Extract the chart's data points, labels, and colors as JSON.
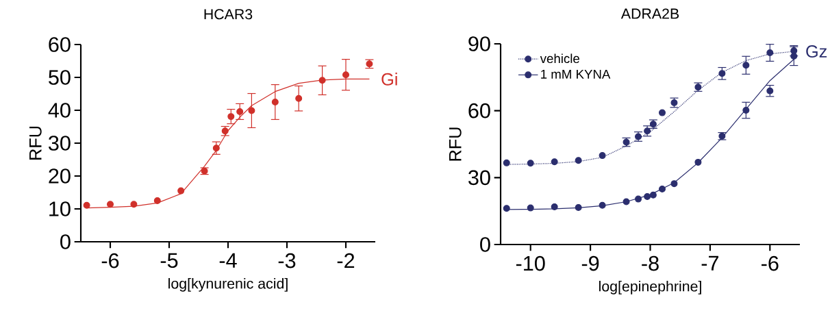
{
  "chart_data": [
    {
      "type": "scatter",
      "title": "HCAR3",
      "xlabel": "log[kynurenic acid]",
      "ylabel": "RFU",
      "xlim": [
        -6.5,
        -1.5
      ],
      "ylim": [
        0,
        60
      ],
      "xticks": [
        -6,
        -5,
        -4,
        -3,
        -2
      ],
      "yticks": [
        0,
        10,
        20,
        30,
        40,
        50,
        60
      ],
      "legend": false,
      "series": [
        {
          "type": "line",
          "color": "#d0302a",
          "line_style": "solid",
          "marker": "none",
          "x": [
            -6.4,
            -6.0,
            -5.6,
            -5.2,
            -4.8,
            -4.4,
            -4.2,
            -4.0,
            -3.8,
            -3.6,
            -3.2,
            -2.8,
            -2.4,
            -2.0,
            -1.6
          ],
          "values": [
            10.3,
            10.5,
            10.8,
            11.8,
            14.6,
            23,
            27.8,
            33.8,
            37.9,
            41.4,
            45.7,
            48.2,
            49.2,
            49.5,
            49.5
          ]
        },
        {
          "color": "#d0302a",
          "marker": "circle",
          "x": [
            -6.4,
            -6.0,
            -5.6,
            -5.2,
            -4.8,
            -4.4,
            -4.2,
            -4.05,
            -3.95,
            -3.8,
            -3.6,
            -3.2,
            -2.8,
            -2.4,
            -2.0,
            -1.6
          ],
          "values": [
            11.1,
            11.4,
            11.4,
            12.5,
            15.5,
            21.5,
            28.5,
            33.7,
            38.1,
            39.6,
            39.9,
            42.5,
            43.6,
            49.1,
            50.8,
            54.1
          ],
          "errors": [
            null,
            null,
            null,
            null,
            null,
            1.0,
            1.9,
            1.4,
            2.2,
            2.4,
            5.2,
            5.3,
            3.8,
            4.4,
            4.7,
            1.3
          ]
        }
      ],
      "annotations": [
        {
          "text": "Gi",
          "x": -1.6,
          "y": 49.5
        }
      ]
    },
    {
      "type": "scatter",
      "title": "ADRA2B",
      "xlabel": "log[epinephrine]",
      "ylabel": "RFU",
      "xlim": [
        -10.5,
        -5.5
      ],
      "ylim": [
        0,
        90
      ],
      "xticks": [
        -10,
        -9,
        -8,
        -7,
        -6
      ],
      "yticks": [
        0,
        30,
        60,
        90
      ],
      "legend": "top left",
      "series": [
        {
          "type": "line",
          "color": "#2b2e6e",
          "line_style": "dotted",
          "marker": "none",
          "x": [
            -10.4,
            -10.0,
            -9.6,
            -9.2,
            -8.8,
            -8.4,
            -8.0,
            -7.6,
            -7.2,
            -6.8,
            -6.4,
            -6.0,
            -5.6
          ],
          "values": [
            35.9,
            36.1,
            36.4,
            37.2,
            39.1,
            44.2,
            50.6,
            59.6,
            69.2,
            77.2,
            82.5,
            85.5,
            86.6
          ]
        },
        {
          "type": "line",
          "color": "#2b2e6e",
          "line_style": "solid",
          "marker": "none",
          "x": [
            -10.4,
            -10.0,
            -9.6,
            -9.2,
            -8.8,
            -8.4,
            -8.0,
            -7.6,
            -7.2,
            -6.8,
            -6.4,
            -6.0,
            -5.6
          ],
          "values": [
            15.7,
            15.8,
            16.0,
            16.5,
            17.4,
            19.2,
            22.3,
            27.7,
            36.7,
            47.9,
            60.7,
            73.5,
            83.1
          ]
        },
        {
          "name": "vehicle",
          "color": "#2b2e6e",
          "marker": "circle",
          "line_style": "dotted",
          "x": [
            -10.4,
            -10.0,
            -9.6,
            -9.2,
            -8.8,
            -8.4,
            -8.2,
            -8.05,
            -7.95,
            -7.8,
            -7.6,
            -7.2,
            -6.8,
            -6.4,
            -6.0,
            -5.6
          ],
          "values": [
            36.6,
            36.5,
            37.1,
            37.7,
            39.9,
            45.9,
            48.4,
            50.9,
            54.0,
            59.1,
            63.6,
            70.6,
            76.7,
            80.4,
            86.0,
            86.9
          ],
          "errors": [
            null,
            null,
            null,
            null,
            null,
            1.9,
            2.1,
            2.3,
            1.9,
            null,
            2.1,
            1.9,
            2.7,
            4.0,
            3.8,
            2.3
          ]
        },
        {
          "name": "1 mM KYNA",
          "color": "#2b2e6e",
          "marker": "circle",
          "line_style": "solid",
          "x": [
            -10.4,
            -10.0,
            -9.6,
            -9.2,
            -8.8,
            -8.4,
            -8.2,
            -8.05,
            -7.95,
            -7.8,
            -7.6,
            -7.2,
            -6.8,
            -6.4,
            -6.0,
            -5.6
          ],
          "values": [
            16.2,
            16.4,
            16.9,
            16.6,
            17.6,
            19.2,
            20.4,
            21.5,
            22.2,
            24.9,
            27.3,
            36.9,
            48.6,
            60.2,
            68.9,
            84.5
          ],
          "errors": [
            null,
            null,
            null,
            null,
            null,
            null,
            null,
            null,
            null,
            null,
            null,
            null,
            1.6,
            3.6,
            2.5,
            4.2
          ]
        }
      ],
      "annotations": [
        {
          "text": "Gz",
          "x": -5.6,
          "y": 86.6
        }
      ]
    }
  ]
}
